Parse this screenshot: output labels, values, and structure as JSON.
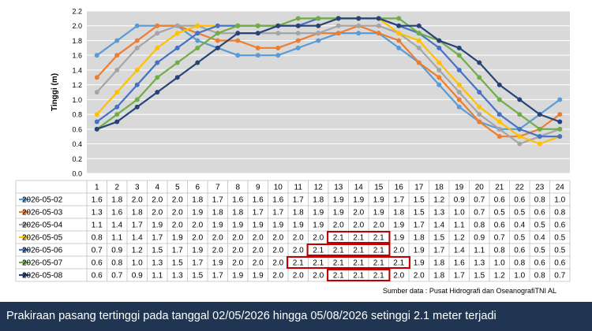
{
  "chart_data": {
    "type": "line",
    "ylabel": "Tinggi (m)",
    "ylim": [
      0,
      2.2
    ],
    "yticks": [
      "0.0",
      "0.2",
      "0.4",
      "0.6",
      "0.8",
      "1.0",
      "1.2",
      "1.4",
      "1.6",
      "1.8",
      "2.0",
      "2.2"
    ],
    "categories": [
      "1",
      "2",
      "3",
      "4",
      "5",
      "6",
      "7",
      "8",
      "9",
      "10",
      "11",
      "12",
      "13",
      "14",
      "15",
      "16",
      "17",
      "18",
      "19",
      "20",
      "21",
      "22",
      "23",
      "24"
    ],
    "grid": true,
    "legend": "data table below chart",
    "series": [
      {
        "name": "2026-05-02",
        "color": "#5b9bd5",
        "values": [
          1.6,
          1.8,
          2.0,
          2.0,
          2.0,
          1.8,
          1.7,
          1.6,
          1.6,
          1.6,
          1.7,
          1.8,
          1.9,
          1.9,
          1.9,
          1.7,
          1.5,
          1.2,
          0.9,
          0.7,
          0.6,
          0.6,
          0.8,
          1.0
        ]
      },
      {
        "name": "2026-05-03",
        "color": "#ed7d31",
        "values": [
          1.3,
          1.6,
          1.8,
          2.0,
          2.0,
          1.9,
          1.8,
          1.8,
          1.7,
          1.7,
          1.8,
          1.9,
          1.9,
          2.0,
          1.9,
          1.8,
          1.5,
          1.3,
          1.0,
          0.7,
          0.5,
          0.5,
          0.6,
          0.8
        ]
      },
      {
        "name": "2026-05-04",
        "color": "#a5a5a5",
        "values": [
          1.1,
          1.4,
          1.7,
          1.9,
          2.0,
          2.0,
          1.9,
          1.9,
          1.9,
          1.9,
          1.9,
          1.9,
          2.0,
          2.0,
          2.0,
          1.9,
          1.7,
          1.4,
          1.1,
          0.8,
          0.6,
          0.4,
          0.5,
          0.6
        ]
      },
      {
        "name": "2026-05-05",
        "color": "#ffc000",
        "values": [
          0.8,
          1.1,
          1.4,
          1.7,
          1.9,
          2.0,
          2.0,
          2.0,
          2.0,
          2.0,
          2.0,
          2.0,
          2.1,
          2.1,
          2.1,
          1.9,
          1.8,
          1.5,
          1.2,
          0.9,
          0.7,
          0.5,
          0.4,
          0.5
        ]
      },
      {
        "name": "2026-05-06",
        "color": "#4472c4",
        "values": [
          0.7,
          0.9,
          1.2,
          1.5,
          1.7,
          1.9,
          2.0,
          2.0,
          2.0,
          2.0,
          2.0,
          2.1,
          2.1,
          2.1,
          2.1,
          2.0,
          1.9,
          1.7,
          1.4,
          1.1,
          0.8,
          0.6,
          0.5,
          0.5
        ]
      },
      {
        "name": "2026-05-07",
        "color": "#70ad47",
        "values": [
          0.6,
          0.8,
          1.0,
          1.3,
          1.5,
          1.7,
          1.9,
          2.0,
          2.0,
          2.0,
          2.1,
          2.1,
          2.1,
          2.1,
          2.1,
          2.1,
          1.9,
          1.8,
          1.6,
          1.3,
          1.0,
          0.8,
          0.6,
          0.6
        ]
      },
      {
        "name": "2026-05-08",
        "color": "#264478",
        "values": [
          0.6,
          0.7,
          0.9,
          1.1,
          1.3,
          1.5,
          1.7,
          1.9,
          1.9,
          2.0,
          2.0,
          2.0,
          2.1,
          2.1,
          2.1,
          2.0,
          2.0,
          1.8,
          1.7,
          1.5,
          1.2,
          1.0,
          0.8,
          0.7
        ]
      }
    ],
    "highlights": [
      {
        "series": 3,
        "from": 13,
        "to": 15
      },
      {
        "series": 4,
        "from": 12,
        "to": 15
      },
      {
        "series": 5,
        "from": 11,
        "to": 16
      },
      {
        "series": 6,
        "from": 13,
        "to": 15
      }
    ],
    "highlight_color": "#c00000",
    "source": "Sumber data : Pusat Hidrografi dan OseanografiTNI AL"
  },
  "caption": "Prakiraan pasang tertinggi pada tanggal 02/05/2026 hingga 05/08/2026 setinggi 2.1 meter terjadi"
}
